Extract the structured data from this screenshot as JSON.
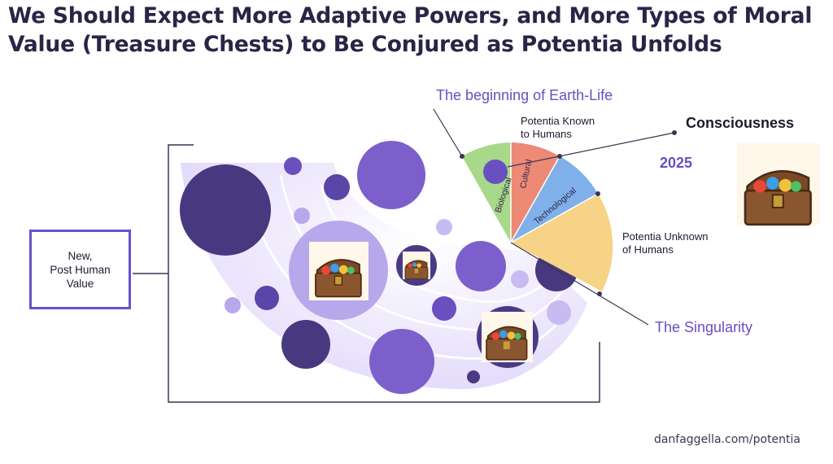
{
  "title": {
    "line1": "We Should Expect More Adaptive Powers, and More Types of Moral",
    "line2": "Value (Treasure Chests) to Be Conjured as Potentia Unfolds"
  },
  "labels": {
    "earth_life": "The beginning of Earth-Life",
    "known": "Potentia Known",
    "known2": "to Humans",
    "consciousness": "Consciousness",
    "year": "2025",
    "unknown": "Potentia Unknown",
    "unknown2": "of Humans",
    "singularity": "The Singularity"
  },
  "segments": {
    "biological": "Biological",
    "cultural": "Cultural",
    "technological": "Technological"
  },
  "new_value": {
    "line1": "New,",
    "line2": "Post Human",
    "line3": "Value"
  },
  "footer": "danfaggella.com/potentia",
  "colors": {
    "biological": "#a8d88a",
    "cultural": "#ec8a76",
    "technological": "#7fb0ea",
    "unknown": "#f6d386",
    "dark_purple": "#4a3a86",
    "mid_purple": "#7c5fcb",
    "light_purple": "#b7a8ec",
    "accent": "#6a4fc0"
  }
}
